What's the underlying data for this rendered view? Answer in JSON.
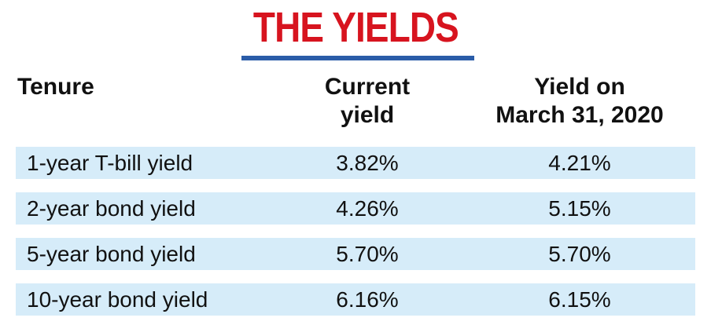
{
  "header": {
    "title": "THE YIELDS"
  },
  "table": {
    "columns": [
      [
        "Tenure"
      ],
      [
        "Current",
        "yield"
      ],
      [
        "Yield on",
        "March 31, 2020"
      ]
    ],
    "rows": [
      [
        "1-year T-bill yield",
        "3.82%",
        "4.21%"
      ],
      [
        "2-year bond yield",
        "4.26%",
        "5.15%"
      ],
      [
        "5-year bond yield",
        "5.70%",
        "5.70%"
      ],
      [
        "10-year bond yield",
        "6.16%",
        "6.15%"
      ]
    ]
  }
}
